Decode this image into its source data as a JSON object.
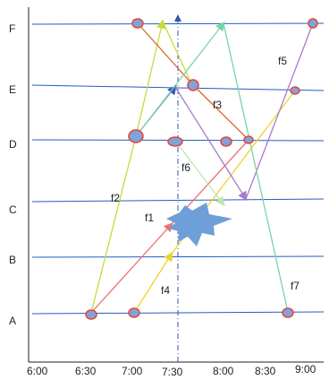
{
  "diagram": {
    "y_labels": [
      "F",
      "E",
      "D",
      "C",
      "B",
      "A"
    ],
    "x_labels": [
      "6:00",
      "6:30",
      "7:00",
      "7:30",
      "8:00",
      "8:30",
      "9:00"
    ],
    "flow_labels": [
      "f1",
      "f2",
      "f3",
      "f4",
      "f5",
      "f6",
      "f7"
    ],
    "colors": {
      "level_line": "#1f5fbf",
      "axis": "#222222",
      "node_fill": "#7ea4d8",
      "node_stroke": "#e8423a",
      "f1": "#f07070",
      "f2": "#c9d93a",
      "f3": "#d9622a",
      "f4": "#f2d32a",
      "f5": "#a87ad0",
      "f6": "#bfe6b0",
      "f7": "#7ad3a8",
      "burst": "#6f9fd8",
      "dashdot": "#3355aa"
    }
  }
}
